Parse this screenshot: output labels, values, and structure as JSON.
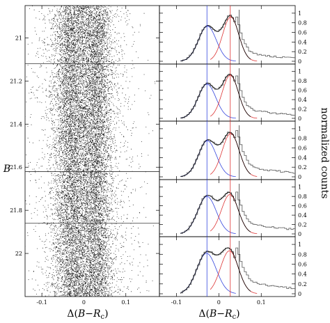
{
  "chart_data": [
    {
      "type": "scatter",
      "xlabel": "Δ(B−R_c)",
      "xlabel_parts": [
        "Δ(",
        "B",
        "−",
        "R",
        "c",
        ")"
      ],
      "ylabel": "B",
      "xlim": [
        -0.14,
        0.18
      ],
      "ylim": [
        22.2,
        20.85
      ],
      "y_inverted": true,
      "xticks": [
        -0.1,
        0,
        0.1
      ],
      "xtick_labels": [
        "-0.1",
        "0",
        "0.1"
      ],
      "yticks": [
        21,
        21.2,
        21.4,
        21.6,
        21.8,
        22
      ],
      "ytick_labels": [
        "21",
        "21.2",
        "21.4",
        "21.6",
        "21.8",
        "22"
      ],
      "bin_boundaries": [
        21.12,
        21.62,
        21.86
      ],
      "sequences": [
        {
          "center": -0.03,
          "sigma": 0.022,
          "weight": 0.52
        },
        {
          "center": 0.028,
          "sigma": 0.02,
          "weight": 0.48
        }
      ],
      "note": "dense point cloud of two parallel sequences"
    },
    {
      "type": "line",
      "layout": "stacked histograms (5 magnitude bins)",
      "xlabel": "Δ(B−R_c)",
      "xlabel_parts": [
        "Δ(",
        "B",
        "−",
        "R",
        "c",
        ")"
      ],
      "ylabel": "normalized counts",
      "xlim": [
        -0.14,
        0.18
      ],
      "xticks": [
        -0.1,
        0,
        0.1
      ],
      "xtick_labels": [
        "-0.1",
        "0",
        "0.1"
      ],
      "ylim": [
        0,
        1.1
      ],
      "yticks": [
        0,
        0.2,
        0.4,
        0.6,
        0.8,
        1
      ],
      "ytick_labels": [
        "0",
        "0.2",
        "0.4",
        "0.6",
        "0.8",
        "1"
      ],
      "panels": [
        {
          "blue": {
            "mu": -0.027,
            "sigma": 0.021,
            "amp": 0.73
          },
          "red": {
            "mu": 0.028,
            "sigma": 0.019,
            "amp": 0.92
          },
          "tail": {
            "start": 0.04,
            "level": 0.22,
            "decay": 0.11
          }
        },
        {
          "blue": {
            "mu": -0.028,
            "sigma": 0.021,
            "amp": 0.73
          },
          "red": {
            "mu": 0.027,
            "sigma": 0.019,
            "amp": 0.92
          },
          "tail": {
            "start": 0.04,
            "level": 0.24,
            "decay": 0.12
          }
        },
        {
          "blue": {
            "mu": -0.027,
            "sigma": 0.021,
            "amp": 0.75
          },
          "red": {
            "mu": 0.028,
            "sigma": 0.02,
            "amp": 0.9
          },
          "tail": {
            "start": 0.04,
            "level": 0.27,
            "decay": 0.12
          }
        },
        {
          "blue": {
            "mu": -0.028,
            "sigma": 0.022,
            "amp": 0.8
          },
          "red": {
            "mu": 0.026,
            "sigma": 0.02,
            "amp": 0.84
          },
          "tail": {
            "start": 0.04,
            "level": 0.28,
            "decay": 0.13
          }
        },
        {
          "blue": {
            "mu": -0.029,
            "sigma": 0.023,
            "amp": 0.82
          },
          "red": {
            "mu": 0.025,
            "sigma": 0.021,
            "amp": 0.87
          },
          "tail": {
            "start": 0.04,
            "level": 0.31,
            "decay": 0.13
          }
        }
      ],
      "vlines": [
        {
          "x": -0.028,
          "color": "#3344dd"
        },
        {
          "x": 0.027,
          "color": "#dd3333"
        }
      ],
      "colors": {
        "blue": "#3344dd",
        "red": "#dd3333",
        "hist": "#555555",
        "fit": "#000000"
      }
    }
  ]
}
